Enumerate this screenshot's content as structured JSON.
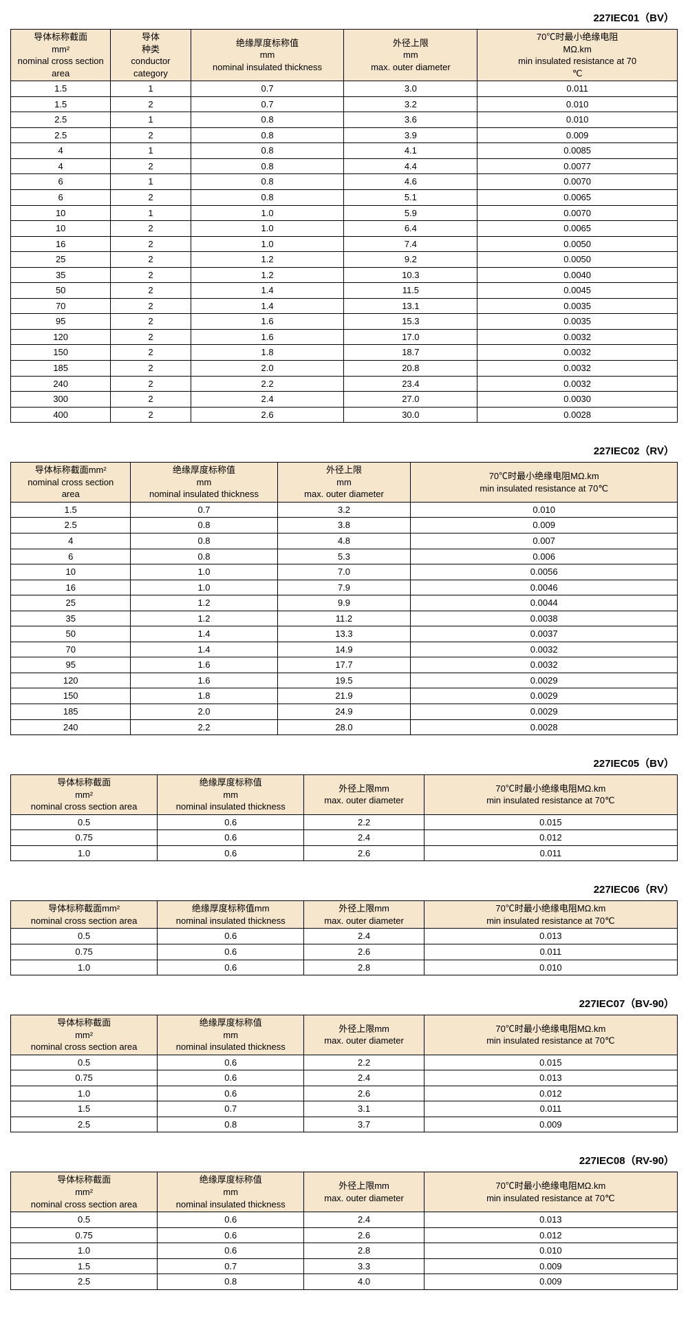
{
  "tables": [
    {
      "title": "227IEC01（BV）",
      "columns": [
        {
          "lines": [
            "导体标称截面",
            "mm²",
            "nominal cross section",
            "area"
          ],
          "width": "15%"
        },
        {
          "lines": [
            "导体",
            "种类",
            "conductor",
            "category"
          ],
          "width": "12%"
        },
        {
          "lines": [
            "绝缘厚度标称值",
            "mm",
            "nominal insulated thickness"
          ],
          "width": "23%"
        },
        {
          "lines": [
            "外径上限",
            "mm",
            "max. outer diameter"
          ],
          "width": "20%"
        },
        {
          "lines": [
            "70℃时最小绝缘电阻",
            "MΩ.km",
            "min insulated resistance at 70",
            "℃"
          ],
          "width": "30%"
        }
      ],
      "rows": [
        [
          "1.5",
          "1",
          "0.7",
          "3.0",
          "0.011"
        ],
        [
          "1.5",
          "2",
          "0.7",
          "3.2",
          "0.010"
        ],
        [
          "2.5",
          "1",
          "0.8",
          "3.6",
          "0.010"
        ],
        [
          "2.5",
          "2",
          "0.8",
          "3.9",
          "0.009"
        ],
        [
          "4",
          "1",
          "0.8",
          "4.1",
          "0.0085"
        ],
        [
          "4",
          "2",
          "0.8",
          "4.4",
          "0.0077"
        ],
        [
          "6",
          "1",
          "0.8",
          "4.6",
          "0.0070"
        ],
        [
          "6",
          "2",
          "0.8",
          "5.1",
          "0.0065"
        ],
        [
          "10",
          "1",
          "1.0",
          "5.9",
          "0.0070"
        ],
        [
          "10",
          "2",
          "1.0",
          "6.4",
          "0.0065"
        ],
        [
          "16",
          "2",
          "1.0",
          "7.4",
          "0.0050"
        ],
        [
          "25",
          "2",
          "1.2",
          "9.2",
          "0.0050"
        ],
        [
          "35",
          "2",
          "1.2",
          "10.3",
          "0.0040"
        ],
        [
          "50",
          "2",
          "1.4",
          "11.5",
          "0.0045"
        ],
        [
          "70",
          "2",
          "1.4",
          "13.1",
          "0.0035"
        ],
        [
          "95",
          "2",
          "1.6",
          "15.3",
          "0.0035"
        ],
        [
          "120",
          "2",
          "1.6",
          "17.0",
          "0.0032"
        ],
        [
          "150",
          "2",
          "1.8",
          "18.7",
          "0.0032"
        ],
        [
          "185",
          "2",
          "2.0",
          "20.8",
          "0.0032"
        ],
        [
          "240",
          "2",
          "2.2",
          "23.4",
          "0.0032"
        ],
        [
          "300",
          "2",
          "2.4",
          "27.0",
          "0.0030"
        ],
        [
          "400",
          "2",
          "2.6",
          "30.0",
          "0.0028"
        ]
      ]
    },
    {
      "title": "227IEC02（RV）",
      "columns": [
        {
          "lines": [
            "导体标称截面mm²",
            "nominal cross section",
            "area"
          ],
          "width": "18%"
        },
        {
          "lines": [
            "绝缘厚度标称值",
            "mm",
            "nominal insulated thickness"
          ],
          "width": "22%"
        },
        {
          "lines": [
            "外径上限",
            "mm",
            "max. outer diameter"
          ],
          "width": "20%"
        },
        {
          "lines": [
            "70℃时最小绝缘电阻MΩ.km",
            "min insulated resistance at 70℃"
          ],
          "width": "40%"
        }
      ],
      "rows": [
        [
          "1.5",
          "0.7",
          "3.2",
          "0.010"
        ],
        [
          "2.5",
          "0.8",
          "3.8",
          "0.009"
        ],
        [
          "4",
          "0.8",
          "4.8",
          "0.007"
        ],
        [
          "6",
          "0.8",
          "5.3",
          "0.006"
        ],
        [
          "10",
          "1.0",
          "7.0",
          "0.0056"
        ],
        [
          "16",
          "1.0",
          "7.9",
          "0.0046"
        ],
        [
          "25",
          "1.2",
          "9.9",
          "0.0044"
        ],
        [
          "35",
          "1.2",
          "11.2",
          "0.0038"
        ],
        [
          "50",
          "1.4",
          "13.3",
          "0.0037"
        ],
        [
          "70",
          "1.4",
          "14.9",
          "0.0032"
        ],
        [
          "95",
          "1.6",
          "17.7",
          "0.0032"
        ],
        [
          "120",
          "1.6",
          "19.5",
          "0.0029"
        ],
        [
          "150",
          "1.8",
          "21.9",
          "0.0029"
        ],
        [
          "185",
          "2.0",
          "24.9",
          "0.0029"
        ],
        [
          "240",
          "2.2",
          "28.0",
          "0.0028"
        ]
      ]
    },
    {
      "title": "227IEC05（BV）",
      "columns": [
        {
          "lines": [
            "导体标称截面",
            "mm²",
            "nominal cross section area"
          ],
          "width": "22%"
        },
        {
          "lines": [
            "绝缘厚度标称值",
            "mm",
            "nominal insulated thickness"
          ],
          "width": "22%"
        },
        {
          "lines": [
            "外径上限mm",
            "max. outer diameter"
          ],
          "width": "18%"
        },
        {
          "lines": [
            "70℃时最小绝缘电阻MΩ.km",
            "min insulated resistance at 70℃"
          ],
          "width": "38%"
        }
      ],
      "rows": [
        [
          "0.5",
          "0.6",
          "2.2",
          "0.015"
        ],
        [
          "0.75",
          "0.6",
          "2.4",
          "0.012"
        ],
        [
          "1.0",
          "0.6",
          "2.6",
          "0.011"
        ]
      ]
    },
    {
      "title": "227IEC06（RV）",
      "columns": [
        {
          "lines": [
            "导体标称截面mm²",
            "nominal cross section area"
          ],
          "width": "22%"
        },
        {
          "lines": [
            "绝缘厚度标称值mm",
            "nominal insulated thickness"
          ],
          "width": "22%"
        },
        {
          "lines": [
            "外径上限mm",
            "max. outer diameter"
          ],
          "width": "18%"
        },
        {
          "lines": [
            "70℃时最小绝缘电阻MΩ.km",
            "min insulated resistance at 70℃"
          ],
          "width": "38%"
        }
      ],
      "rows": [
        [
          "0.5",
          "0.6",
          "2.4",
          "0.013"
        ],
        [
          "0.75",
          "0.6",
          "2.6",
          "0.011"
        ],
        [
          "1.0",
          "0.6",
          "2.8",
          "0.010"
        ]
      ]
    },
    {
      "title": "227IEC07（BV-90）",
      "columns": [
        {
          "lines": [
            "导体标称截面",
            "mm²",
            "nominal cross section area"
          ],
          "width": "22%"
        },
        {
          "lines": [
            "绝缘厚度标称值",
            "mm",
            "nominal insulated thickness"
          ],
          "width": "22%"
        },
        {
          "lines": [
            "外径上限mm",
            "max. outer diameter"
          ],
          "width": "18%"
        },
        {
          "lines": [
            "70℃时最小绝缘电阻MΩ.km",
            "min insulated resistance at 70℃"
          ],
          "width": "38%"
        }
      ],
      "rows": [
        [
          "0.5",
          "0.6",
          "2.2",
          "0.015"
        ],
        [
          "0.75",
          "0.6",
          "2.4",
          "0.013"
        ],
        [
          "1.0",
          "0.6",
          "2.6",
          "0.012"
        ],
        [
          "1.5",
          "0.7",
          "3.1",
          "0.011"
        ],
        [
          "2.5",
          "0.8",
          "3.7",
          "0.009"
        ]
      ]
    },
    {
      "title": "227IEC08（RV-90）",
      "columns": [
        {
          "lines": [
            "导体标称截面",
            "mm²",
            "nominal cross section area"
          ],
          "width": "22%"
        },
        {
          "lines": [
            "绝缘厚度标称值",
            "mm",
            "nominal insulated thickness"
          ],
          "width": "22%"
        },
        {
          "lines": [
            "外径上限mm",
            "max. outer diameter"
          ],
          "width": "18%"
        },
        {
          "lines": [
            "70℃时最小绝缘电阻MΩ.km",
            "min insulated resistance at 70℃"
          ],
          "width": "38%"
        }
      ],
      "rows": [
        [
          "0.5",
          "0.6",
          "2.4",
          "0.013"
        ],
        [
          "0.75",
          "0.6",
          "2.6",
          "0.012"
        ],
        [
          "1.0",
          "0.6",
          "2.8",
          "0.010"
        ],
        [
          "1.5",
          "0.7",
          "3.3",
          "0.009"
        ],
        [
          "2.5",
          "0.8",
          "4.0",
          "0.009"
        ]
      ]
    }
  ],
  "colors": {
    "header_bg": "#f6e6cc",
    "border": "#000000"
  }
}
